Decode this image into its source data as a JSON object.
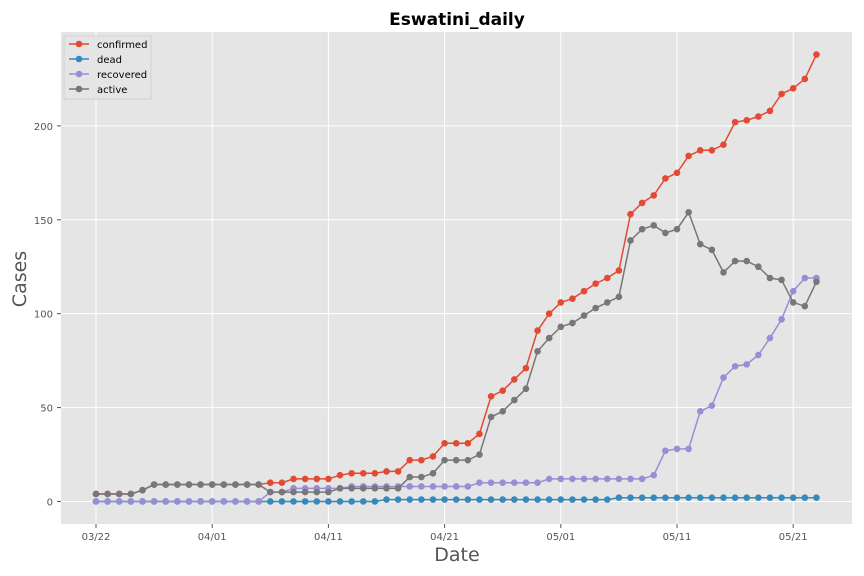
{
  "chart_data": {
    "type": "line",
    "title": "Eswatini_daily",
    "xlabel": "Date",
    "ylabel": "Cases",
    "x_start": "03/22",
    "xticks": [
      "03/22",
      "04/01",
      "04/11",
      "04/21",
      "05/01",
      "05/11",
      "05/21"
    ],
    "yticks": [
      0,
      50,
      100,
      150,
      200
    ],
    "ylim": [
      -12,
      250
    ],
    "grid": true,
    "legend_position": "top-left",
    "series": [
      {
        "name": "confirmed",
        "color": "#E24A33",
        "values": [
          4,
          4,
          4,
          4,
          6,
          9,
          9,
          9,
          9,
          9,
          9,
          9,
          9,
          9,
          9,
          10,
          10,
          12,
          12,
          12,
          12,
          14,
          15,
          15,
          15,
          16,
          16,
          22,
          22,
          24,
          31,
          31,
          31,
          36,
          56,
          59,
          65,
          71,
          91,
          100,
          106,
          108,
          112,
          116,
          119,
          123,
          153,
          159,
          163,
          172,
          175,
          184,
          187,
          187,
          190,
          202,
          203,
          205,
          208,
          217,
          220,
          225,
          238
        ]
      },
      {
        "name": "dead",
        "color": "#348ABD",
        "values": [
          0,
          0,
          0,
          0,
          0,
          0,
          0,
          0,
          0,
          0,
          0,
          0,
          0,
          0,
          0,
          0,
          0,
          0,
          0,
          0,
          0,
          0,
          0,
          0,
          0,
          1,
          1,
          1,
          1,
          1,
          1,
          1,
          1,
          1,
          1,
          1,
          1,
          1,
          1,
          1,
          1,
          1,
          1,
          1,
          1,
          2,
          2,
          2,
          2,
          2,
          2,
          2,
          2,
          2,
          2,
          2,
          2,
          2,
          2,
          2,
          2,
          2,
          2
        ]
      },
      {
        "name": "recovered",
        "color": "#988ED5",
        "values": [
          0,
          0,
          0,
          0,
          0,
          0,
          0,
          0,
          0,
          0,
          0,
          0,
          0,
          0,
          0,
          5,
          5,
          7,
          7,
          7,
          7,
          7,
          8,
          8,
          8,
          8,
          8,
          8,
          8,
          8,
          8,
          8,
          8,
          10,
          10,
          10,
          10,
          10,
          10,
          12,
          12,
          12,
          12,
          12,
          12,
          12,
          12,
          12,
          14,
          27,
          28,
          28,
          48,
          51,
          66,
          72,
          73,
          78,
          87,
          97,
          112,
          119,
          119
        ]
      },
      {
        "name": "active",
        "color": "#777777",
        "values": [
          4,
          4,
          4,
          4,
          6,
          9,
          9,
          9,
          9,
          9,
          9,
          9,
          9,
          9,
          9,
          5,
          5,
          5,
          5,
          5,
          5,
          7,
          7,
          7,
          7,
          7,
          7,
          13,
          13,
          15,
          22,
          22,
          22,
          25,
          45,
          48,
          54,
          60,
          80,
          87,
          93,
          95,
          99,
          103,
          106,
          109,
          139,
          145,
          147,
          143,
          145,
          154,
          137,
          134,
          122,
          128,
          128,
          125,
          119,
          118,
          106,
          104,
          117
        ]
      }
    ]
  }
}
